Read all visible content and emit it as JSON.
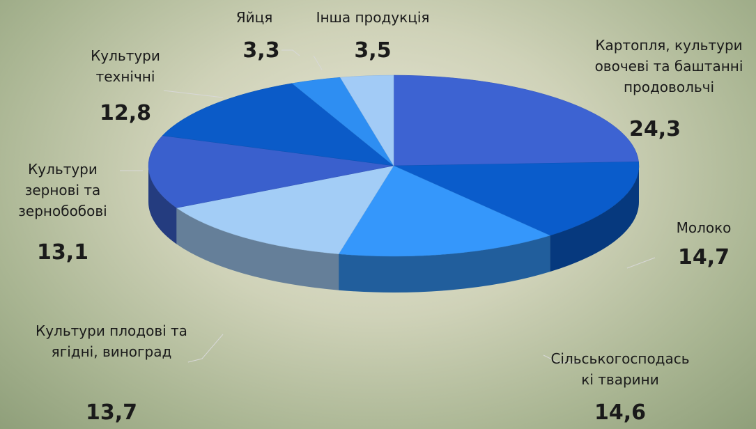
{
  "chart_data": {
    "type": "pie",
    "categories": [
      "Картопля, культури овочеві та баштанні продовольчі",
      "Молоко",
      "Сільськогосподаські тварини",
      "Культури плодові та ягідні, виноград",
      "Культури зернові та зернобобові",
      "Культури технічні",
      "Яйця",
      "Інша продукція"
    ],
    "values": [
      24.3,
      14.7,
      14.6,
      13.7,
      13.1,
      12.8,
      3.3,
      3.5
    ],
    "value_labels": [
      "24,3",
      "14,7",
      "14,6",
      "13,7",
      "13,1",
      "12,8",
      "3,3",
      "3,5"
    ],
    "colors": [
      "#3d63d2",
      "#0a5ccb",
      "#3597fb",
      "#a3cdf6",
      "#3a60cd",
      "#0b5bc8",
      "#2e8ef2",
      "#a2cbf6"
    ]
  }
}
